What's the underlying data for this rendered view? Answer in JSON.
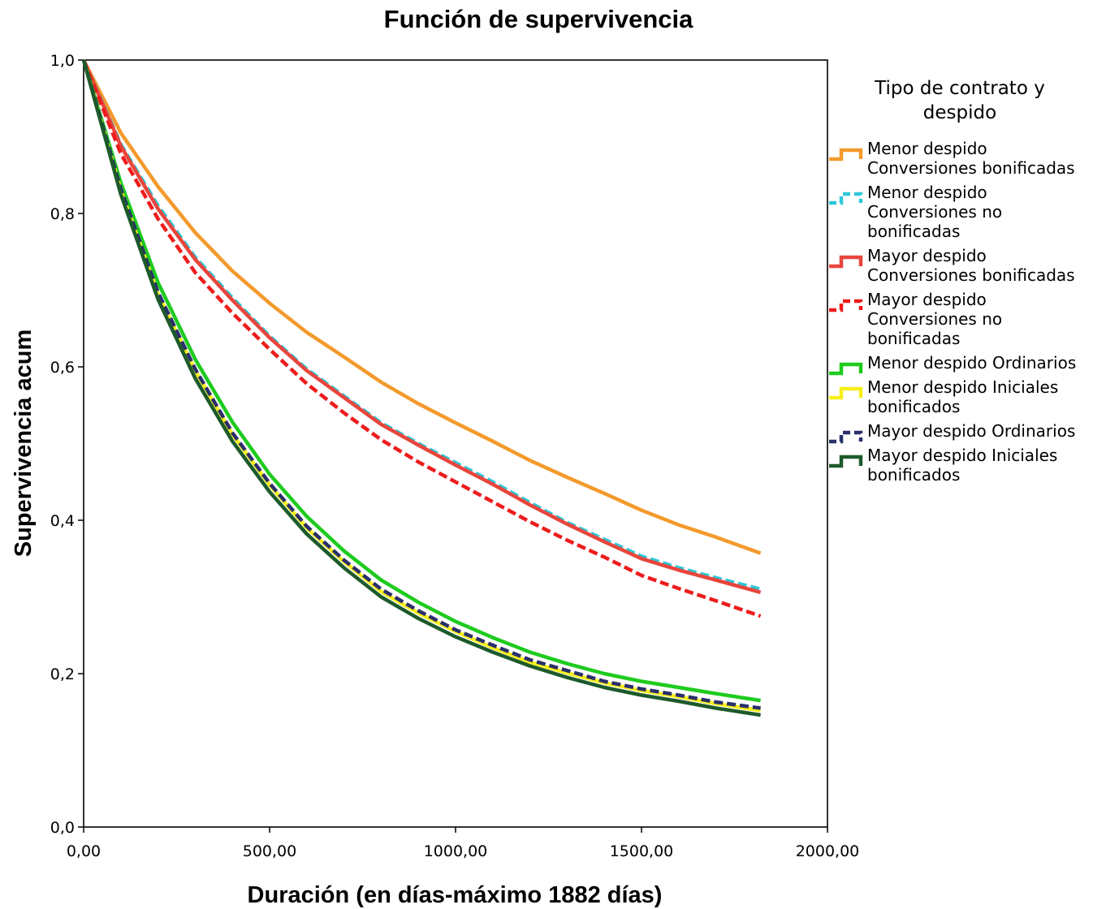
{
  "chart_data": {
    "type": "line",
    "title": "Función de supervivencia",
    "xlabel": "Duración (en días-máximo 1882 días)",
    "ylabel": "Supervivencia acum",
    "xlim": [
      0,
      2000
    ],
    "ylim": [
      0,
      1
    ],
    "x_ticks": [
      "0,00",
      "500,00",
      "1000,00",
      "1500,00",
      "2000,00"
    ],
    "x_tick_values": [
      0,
      500,
      1000,
      1500,
      2000
    ],
    "y_ticks": [
      "0,0",
      "0,2",
      "0,4",
      "0,6",
      "0,8",
      "1,0"
    ],
    "y_tick_values": [
      0,
      0.2,
      0.4,
      0.6,
      0.8,
      1.0
    ],
    "grid": false,
    "legend": {
      "title_lines": [
        "Tipo de contrato y",
        "despido"
      ],
      "placement": "right"
    },
    "x": [
      0,
      100,
      200,
      300,
      400,
      500,
      600,
      700,
      800,
      900,
      1000,
      1100,
      1200,
      1300,
      1400,
      1500,
      1600,
      1700,
      1820
    ],
    "series": [
      {
        "name": "Menor despido Conversiones bonificadas",
        "label_lines": [
          "Menor despido",
          "Conversiones bonificadas"
        ],
        "color": "#f39a2c",
        "dash": "solid",
        "values": [
          1.0,
          0.905,
          0.835,
          0.775,
          0.725,
          0.683,
          0.645,
          0.613,
          0.58,
          0.552,
          0.527,
          0.503,
          0.478,
          0.456,
          0.435,
          0.413,
          0.394,
          0.378,
          0.357
        ]
      },
      {
        "name": "Menor despido Conversiones no bonificadas",
        "label_lines": [
          "Menor despido",
          "Conversiones no",
          "bonificadas"
        ],
        "color": "#2ec7d6",
        "dash": "dashed",
        "values": [
          1.0,
          0.89,
          0.81,
          0.743,
          0.69,
          0.64,
          0.597,
          0.562,
          0.527,
          0.5,
          0.475,
          0.45,
          0.423,
          0.397,
          0.375,
          0.353,
          0.338,
          0.325,
          0.31
        ]
      },
      {
        "name": "Mayor despido Conversiones bonificadas",
        "label_lines": [
          "Mayor despido",
          "Conversiones bonificadas"
        ],
        "color": "#e8453c",
        "dash": "solid",
        "values": [
          1.0,
          0.888,
          0.806,
          0.74,
          0.687,
          0.638,
          0.595,
          0.56,
          0.525,
          0.498,
          0.472,
          0.447,
          0.42,
          0.395,
          0.372,
          0.35,
          0.335,
          0.322,
          0.306
        ]
      },
      {
        "name": "Mayor despido Conversiones no bonificadas",
        "label_lines": [
          "Mayor despido",
          "Conversiones no",
          "bonificadas"
        ],
        "color": "#ee1c1c",
        "dash": "dashed",
        "values": [
          1.0,
          0.878,
          0.793,
          0.723,
          0.67,
          0.623,
          0.578,
          0.54,
          0.505,
          0.476,
          0.45,
          0.424,
          0.398,
          0.374,
          0.352,
          0.328,
          0.311,
          0.295,
          0.275
        ]
      },
      {
        "name": "Menor despido Ordinarios",
        "label_lines": [
          "Menor despido Ordinarios"
        ],
        "color": "#1ecb1e",
        "dash": "solid",
        "values": [
          1.0,
          0.84,
          0.71,
          0.61,
          0.528,
          0.46,
          0.405,
          0.36,
          0.322,
          0.293,
          0.268,
          0.247,
          0.228,
          0.213,
          0.2,
          0.19,
          0.182,
          0.174,
          0.165
        ]
      },
      {
        "name": "Menor despido Iniciales bonificados",
        "label_lines": [
          "Menor despido Iniciales",
          "bonificados"
        ],
        "color": "#f5ef1a",
        "dash": "solid",
        "values": [
          1.0,
          0.83,
          0.695,
          0.595,
          0.512,
          0.446,
          0.39,
          0.346,
          0.307,
          0.279,
          0.255,
          0.234,
          0.215,
          0.201,
          0.188,
          0.178,
          0.17,
          0.161,
          0.152
        ]
      },
      {
        "name": "Mayor despido Ordinarios",
        "label_lines": [
          "Mayor despido Ordinarios"
        ],
        "color": "#2a2f6b",
        "dash": "dashed",
        "values": [
          1.0,
          0.832,
          0.697,
          0.597,
          0.514,
          0.448,
          0.392,
          0.348,
          0.31,
          0.282,
          0.257,
          0.237,
          0.218,
          0.204,
          0.19,
          0.18,
          0.172,
          0.163,
          0.155
        ]
      },
      {
        "name": "Mayor despido Iniciales bonificados",
        "label_lines": [
          "Mayor despido Iniciales",
          "bonificados"
        ],
        "color": "#1d5a2b",
        "dash": "solid",
        "values": [
          1.0,
          0.825,
          0.688,
          0.585,
          0.503,
          0.437,
          0.382,
          0.338,
          0.3,
          0.272,
          0.248,
          0.228,
          0.21,
          0.195,
          0.182,
          0.172,
          0.164,
          0.155,
          0.146
        ]
      }
    ]
  }
}
